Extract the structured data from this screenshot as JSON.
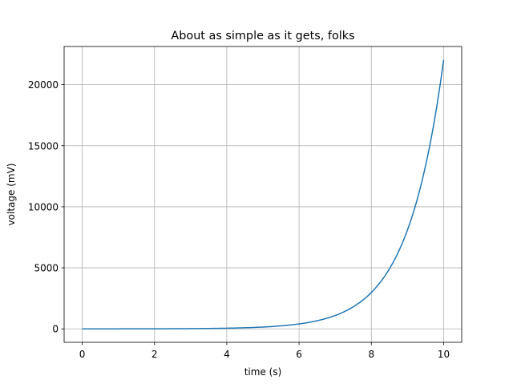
{
  "chart_data": {
    "type": "line",
    "title": "About as simple as it gets, folks",
    "xlabel": "time (s)",
    "ylabel": "voltage (mV)",
    "xlim": [
      -0.5,
      10.5
    ],
    "ylim": [
      -1101.3,
      23127.7
    ],
    "xticks": [
      0,
      2,
      4,
      6,
      8,
      10
    ],
    "yticks": [
      0,
      5000,
      10000,
      15000,
      20000
    ],
    "grid": true,
    "legend": "none",
    "series": [
      {
        "color": "#1f77b4",
        "x": [
          0,
          0.5,
          1,
          1.5,
          2,
          2.5,
          3,
          3.5,
          4,
          4.5,
          5,
          5.5,
          6,
          6.5,
          7,
          7.5,
          8,
          8.5,
          9,
          9.5,
          10
        ],
        "y": [
          1,
          1.6,
          2.7,
          4.5,
          7.4,
          12.2,
          20.1,
          33.1,
          54.6,
          90.0,
          148.4,
          244.7,
          403.4,
          665.1,
          1096.6,
          1808.0,
          2981.0,
          4914.8,
          8103.1,
          13359.7,
          22026.5
        ]
      }
    ]
  }
}
